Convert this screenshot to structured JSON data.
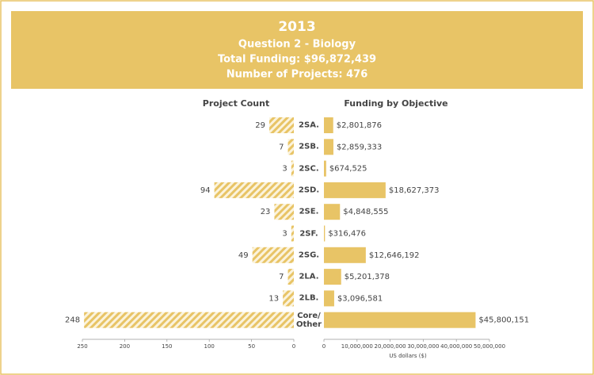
{
  "header": {
    "title": "2013",
    "subtitle": "Question 2 - Biology",
    "funding": "Total Funding: $96,872,439",
    "projects": "Number of Projects: 476"
  },
  "chart_data": [
    {
      "type": "bar",
      "orientation": "horizontal",
      "title": "Project Count",
      "hatched": true,
      "color": "#e8c466",
      "categories": [
        "2SA.",
        "2SB.",
        "2SC.",
        "2SD.",
        "2SE.",
        "2SF.",
        "2SG.",
        "2LA.",
        "2LB.",
        "Core/ Other"
      ],
      "values": [
        29,
        7,
        3,
        94,
        23,
        3,
        49,
        7,
        13,
        248
      ],
      "xlim": [
        250,
        0
      ],
      "xticks": [
        250,
        200,
        150,
        100,
        50,
        0
      ]
    },
    {
      "type": "bar",
      "orientation": "horizontal",
      "title": "Funding by Objective",
      "x_label": "US dollars ($)",
      "hatched": false,
      "color": "#e8c466",
      "values": [
        2801876,
        2859333,
        674525,
        18627373,
        4848555,
        316476,
        12646192,
        5201378,
        3096581,
        45800151
      ],
      "value_labels": [
        "$2,801,876",
        "$2,859,333",
        "$674,525",
        "$18,627,373",
        "$4,848,555",
        "$316,476",
        "$12,646,192",
        "$5,201,378",
        "$3,096,581",
        "$45,800,151"
      ],
      "xlim": [
        0,
        50000000
      ],
      "xticks": [
        0,
        {
          "value": 10000000,
          "label": "10,000,000"
        },
        {
          "value": 20000000,
          "label": "20,000,000"
        },
        {
          "value": 30000000,
          "label": "30,000,000"
        },
        {
          "value": 40000000,
          "label": "40,000,000"
        },
        {
          "value": 50000000,
          "label": "50,000,000"
        }
      ]
    }
  ]
}
